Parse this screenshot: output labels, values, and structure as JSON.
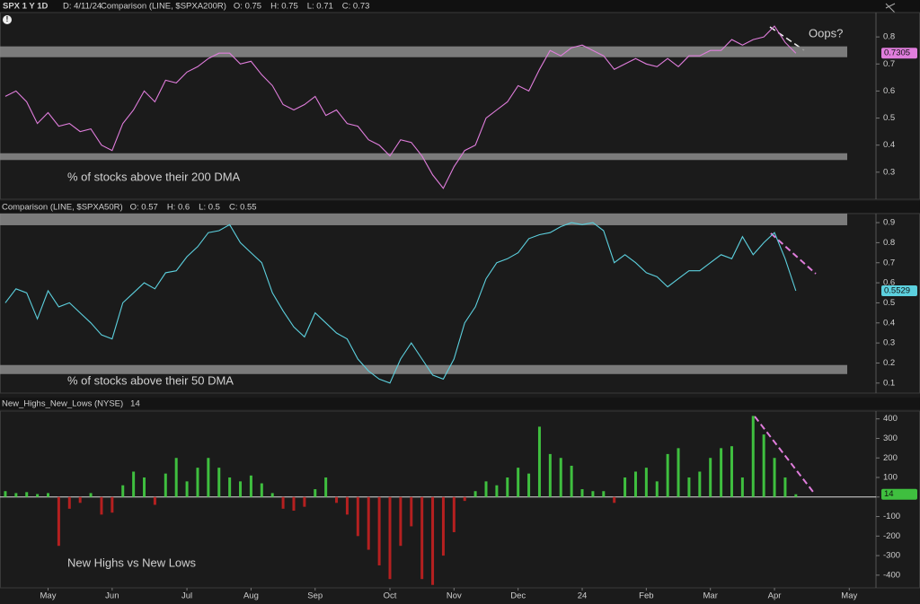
{
  "header": {
    "symbol": "SPX 1 Y 1D",
    "date": "D: 4/11/24"
  },
  "chart_data": [
    {
      "type": "line",
      "title": "Comparison (LINE, $SPXA200R)",
      "stats": [
        "O: 0.75",
        "H: 0.75",
        "L: 0.71",
        "C: 0.73"
      ],
      "annotations": [
        "% of stocks above their 200 DMA",
        "Oops?"
      ],
      "last_label": "0.7305",
      "color": "#e07ddc",
      "ylim": [
        0.2,
        0.89
      ],
      "yticks": [
        0.3,
        0.4,
        0.5,
        0.6,
        0.7,
        0.8
      ],
      "bands": [
        [
          0.725,
          0.765
        ],
        [
          0.345,
          0.37
        ]
      ],
      "values": [
        0.58,
        0.6,
        0.56,
        0.48,
        0.52,
        0.47,
        0.48,
        0.45,
        0.46,
        0.4,
        0.38,
        0.48,
        0.53,
        0.6,
        0.56,
        0.64,
        0.63,
        0.67,
        0.69,
        0.72,
        0.74,
        0.74,
        0.7,
        0.71,
        0.66,
        0.62,
        0.55,
        0.53,
        0.55,
        0.58,
        0.51,
        0.53,
        0.48,
        0.47,
        0.42,
        0.4,
        0.36,
        0.42,
        0.41,
        0.36,
        0.29,
        0.24,
        0.32,
        0.38,
        0.4,
        0.5,
        0.53,
        0.56,
        0.62,
        0.6,
        0.68,
        0.75,
        0.73,
        0.76,
        0.77,
        0.75,
        0.73,
        0.68,
        0.7,
        0.72,
        0.7,
        0.69,
        0.72,
        0.69,
        0.73,
        0.73,
        0.75,
        0.75,
        0.79,
        0.77,
        0.79,
        0.8,
        0.84,
        0.78,
        0.74,
        null,
        null,
        null,
        null,
        null,
        null,
        null
      ]
    },
    {
      "type": "line",
      "title": "Comparison (LINE, $SPXA50R)",
      "stats": [
        "O: 0.57",
        "H: 0.6",
        "L: 0.5",
        "C: 0.55"
      ],
      "annotations": [
        "% of stocks above their 50 DMA"
      ],
      "last_label": "0.5529",
      "color": "#5cd0de",
      "ylim": [
        0.05,
        0.945
      ],
      "yticks": [
        0.1,
        0.2,
        0.3,
        0.4,
        0.5,
        0.6,
        0.7,
        0.8,
        0.9
      ],
      "bands": [
        [
          0.887,
          0.945
        ],
        [
          0.145,
          0.19
        ]
      ],
      "values": [
        0.5,
        0.57,
        0.55,
        0.42,
        0.56,
        0.48,
        0.5,
        0.45,
        0.4,
        0.34,
        0.32,
        0.5,
        0.55,
        0.6,
        0.57,
        0.65,
        0.66,
        0.73,
        0.78,
        0.85,
        0.86,
        0.89,
        0.8,
        0.75,
        0.7,
        0.55,
        0.46,
        0.38,
        0.33,
        0.45,
        0.4,
        0.35,
        0.32,
        0.22,
        0.16,
        0.12,
        0.1,
        0.22,
        0.3,
        0.22,
        0.14,
        0.12,
        0.22,
        0.4,
        0.48,
        0.62,
        0.7,
        0.72,
        0.75,
        0.82,
        0.84,
        0.85,
        0.88,
        0.9,
        0.89,
        0.9,
        0.86,
        0.7,
        0.74,
        0.7,
        0.65,
        0.63,
        0.58,
        0.62,
        0.66,
        0.66,
        0.7,
        0.74,
        0.72,
        0.83,
        0.74,
        0.8,
        0.85,
        0.72,
        0.56,
        null,
        null,
        null,
        null,
        null,
        null,
        null
      ]
    },
    {
      "type": "bar",
      "title": "New_Highs_New_Lows (NYSE)",
      "stats": [
        "14"
      ],
      "annotations": [
        "New Highs vs New Lows"
      ],
      "last_label": "14",
      "color_up": "#3fbf3f",
      "color_down": "#b52020",
      "ylim": [
        -465,
        440
      ],
      "yticks": [
        -400,
        -300,
        -200,
        -100,
        0,
        100,
        200,
        300,
        400
      ],
      "categories": [
        null,
        null,
        null,
        null,
        "May",
        null,
        null,
        null,
        null,
        null,
        "Jun",
        null,
        null,
        null,
        null,
        null,
        null,
        "Jul",
        null,
        null,
        null,
        null,
        null,
        "Aug",
        null,
        null,
        null,
        null,
        null,
        "Sep",
        null,
        null,
        null,
        null,
        null,
        null,
        "Oct",
        null,
        null,
        null,
        null,
        null,
        "Nov",
        null,
        null,
        null,
        null,
        null,
        "Dec",
        null,
        null,
        null,
        null,
        null,
        "24",
        null,
        null,
        null,
        null,
        null,
        "Feb",
        null,
        null,
        null,
        null,
        null,
        "Mar",
        null,
        null,
        null,
        null,
        null,
        "Apr",
        null,
        null,
        null,
        null,
        null,
        null,
        "May",
        null,
        null
      ],
      "values": [
        30,
        20,
        25,
        15,
        20,
        -250,
        -60,
        -30,
        20,
        -90,
        -80,
        60,
        130,
        100,
        -40,
        120,
        200,
        80,
        150,
        200,
        150,
        100,
        80,
        110,
        70,
        20,
        -60,
        -70,
        -50,
        40,
        100,
        -30,
        -90,
        -200,
        -270,
        -350,
        -420,
        -250,
        -150,
        -420,
        -450,
        -300,
        -180,
        -20,
        30,
        80,
        60,
        100,
        150,
        120,
        360,
        220,
        200,
        160,
        40,
        30,
        30,
        -30,
        100,
        130,
        150,
        80,
        220,
        250,
        100,
        130,
        200,
        250,
        260,
        100,
        415,
        320,
        200,
        100,
        14,
        null,
        null,
        null,
        null,
        null,
        null,
        null
      ]
    }
  ]
}
